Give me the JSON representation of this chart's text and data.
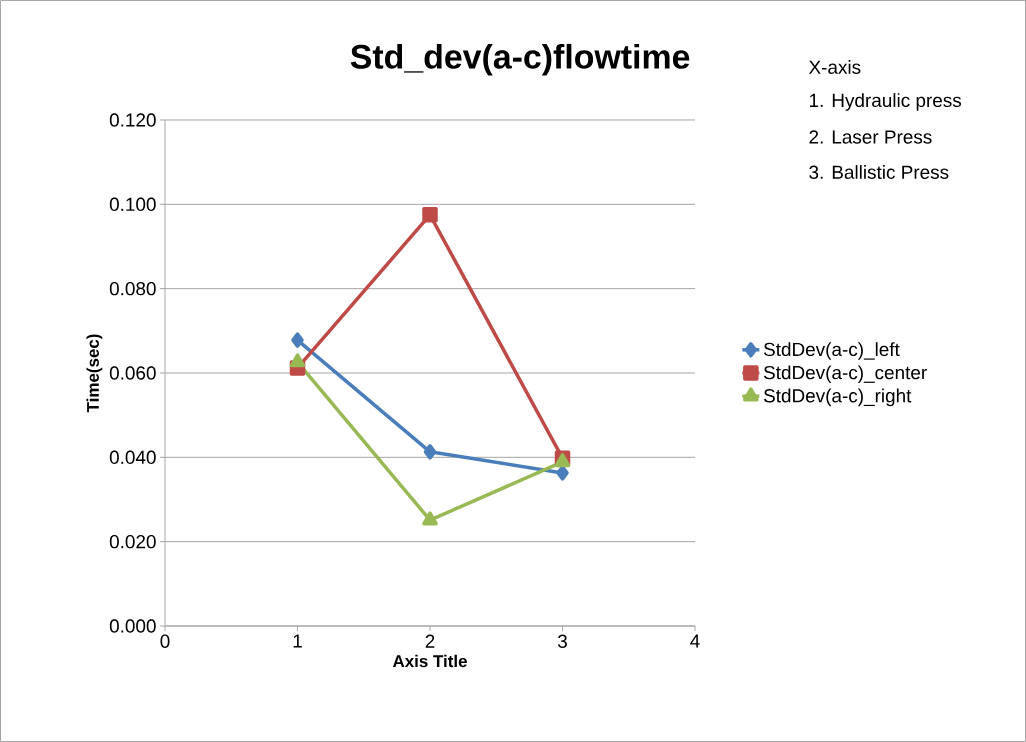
{
  "chart_data": {
    "type": "line",
    "title": "Std_dev(a-c)flowtime",
    "xlabel": "Axis Title",
    "ylabel": "Time(sec)",
    "annotations": [
      "X-axis",
      "1. Hydraulic press",
      "2. Laser Press",
      "3. Ballistic Press"
    ],
    "x": [
      1,
      2,
      3
    ],
    "series": [
      {
        "name": "StdDev(a-c)_left",
        "color": "#4a7ebb",
        "marker": "diamond",
        "values": [
          0.0678,
          0.0413,
          0.0363
        ]
      },
      {
        "name": "StdDev(a-c)_center",
        "color": "#be4b48",
        "marker": "square",
        "values": [
          0.0612,
          0.0975,
          0.0398
        ]
      },
      {
        "name": "StdDev(a-c)_right",
        "color": "#98b954",
        "marker": "triangle",
        "values": [
          0.0626,
          0.0251,
          0.0389
        ]
      }
    ],
    "xlim": [
      0,
      4
    ],
    "xticks": [
      0,
      1,
      2,
      3,
      4
    ],
    "ylim": [
      0,
      0.12
    ],
    "yticks": [
      {
        "value": 0,
        "label": "0.000"
      },
      {
        "value": 0.02,
        "label": "0.020"
      },
      {
        "value": 0.04,
        "label": "0.040"
      },
      {
        "value": 0.06,
        "label": "0.060"
      },
      {
        "value": 0.08,
        "label": "0.080"
      },
      {
        "value": 0.1,
        "label": "0.100"
      },
      {
        "value": 0.12,
        "label": "0.120"
      }
    ],
    "grid": "y",
    "legend": "right"
  }
}
